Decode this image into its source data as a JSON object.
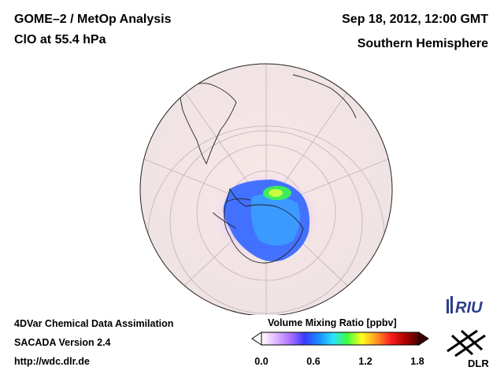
{
  "header": {
    "title": "GOME–2 / MetOp Analysis",
    "subtitle": "ClO at 55.4 hPa",
    "datetime": "Sep 18, 2012, 12:00 GMT",
    "region": "Southern Hemisphere"
  },
  "footer": {
    "system": "4DVar Chemical Data Assimilation",
    "version": "SACADA Version 2.4",
    "url": "http://wdc.dlr.de"
  },
  "colorbar": {
    "title": "Volume Mixing Ratio [ppbv]",
    "ticks": [
      "0.0",
      "0.6",
      "1.2",
      "1.8"
    ],
    "range": [
      0.0,
      1.8
    ],
    "colors": [
      "#ffffff",
      "#e0b8ff",
      "#b070ff",
      "#3a3aff",
      "#1a8cff",
      "#2ce0ff",
      "#3cff3c",
      "#ffff20",
      "#ff9a20",
      "#ff2020",
      "#b00000",
      "#500000"
    ]
  },
  "logos": {
    "riu": "RIU",
    "dlr": "DLR"
  },
  "map": {
    "projection": "orthographic",
    "center": "South Pole",
    "background_color": "#f6e6e6"
  }
}
